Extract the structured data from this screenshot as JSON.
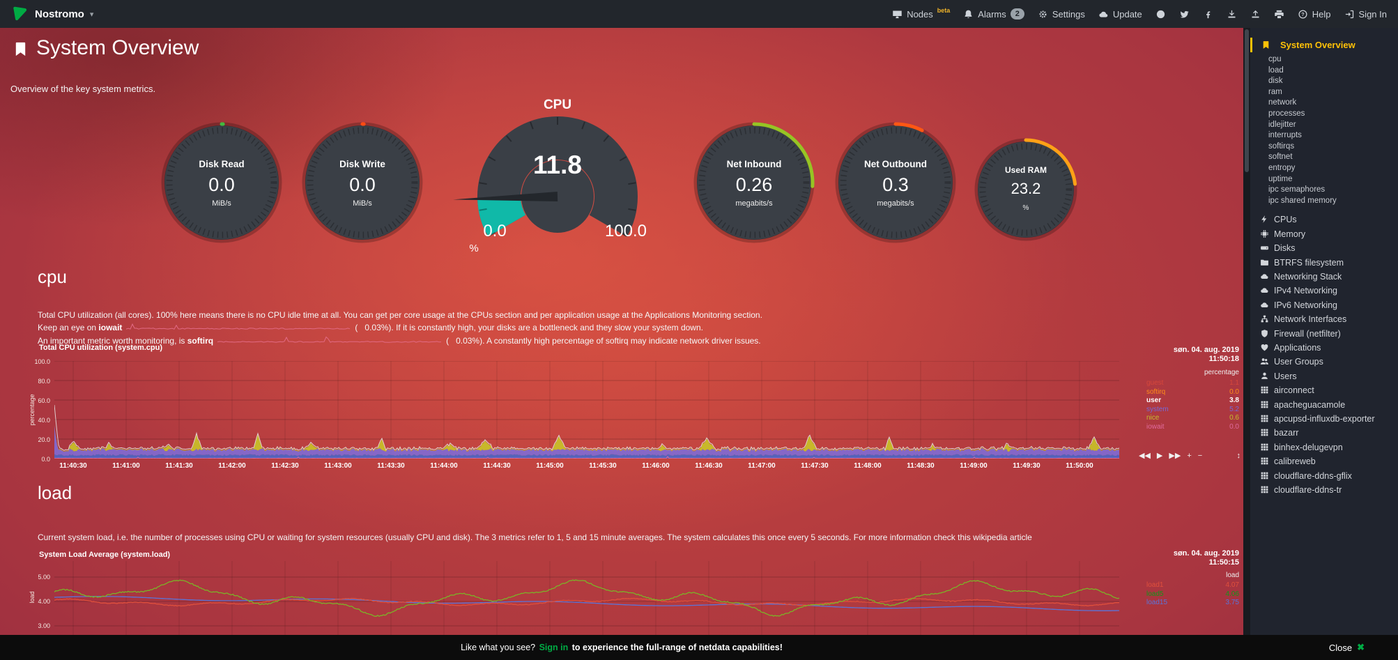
{
  "navbar": {
    "brand": "Nostromo",
    "nodes": {
      "label": "Nodes",
      "badge": "beta"
    },
    "alarms": {
      "label": "Alarms",
      "badge": "2"
    },
    "settings_label": "Settings",
    "update_label": "Update",
    "help_label": "Help",
    "signin_label": "Sign In"
  },
  "header": {
    "title": "System Overview",
    "subtitle": "Overview of the key system metrics."
  },
  "gauges": {
    "cpu": {
      "title": "CPU",
      "value": "11.8",
      "min": "0.0",
      "max": "100.0",
      "unit": "%",
      "color": "#10b9a8",
      "fraction": 0.118
    },
    "pies": [
      {
        "title": "Disk Read",
        "value": "0.0",
        "unit": "MiB/s",
        "color": "#43b93f",
        "fraction": 0.004
      },
      {
        "title": "Disk Write",
        "value": "0.0",
        "unit": "MiB/s",
        "color": "#ff4b12",
        "fraction": 0.004
      },
      {
        "title": "Net Inbound",
        "value": "0.26",
        "unit": "megabits/s",
        "color": "#97c424",
        "fraction": 0.26
      },
      {
        "title": "Net Outbound",
        "value": "0.3",
        "unit": "megabits/s",
        "color": "#ff5714",
        "fraction": 0.075
      },
      {
        "title": "Used RAM",
        "value": "23.2",
        "unit": "%",
        "color": "#ffa117",
        "fraction": 0.232,
        "small": true
      }
    ]
  },
  "cpu_section": {
    "heading": "cpu",
    "description": "Total CPU utilization (all cores). 100% here means there is no CPU idle time at all. You can get per core usage at the CPUs section and per application usage at the Applications Monitoring section.",
    "iowait_line": {
      "prefix": "Keep an eye on ",
      "metric": "iowait",
      "open": "(",
      "value": "0.03%",
      "suffix": "). If it is constantly high, your disks are a bottleneck and they slow your system down."
    },
    "softirq_line": {
      "prefix": "An important metric worth monitoring, is ",
      "metric": "softirq",
      "open": "(",
      "value": "0.03%",
      "suffix": "). A constantly high percentage of softirq may indicate network driver issues."
    },
    "spark_color": "#e26a84"
  },
  "cpu_chart": {
    "title": "Total CPU utilization (system.cpu)",
    "date": "søn. 04. aug. 2019",
    "time": "11:50:18",
    "unit": "percentage",
    "y_label": "percentage",
    "y_ticks": [
      "100.0",
      "80.0",
      "60.0",
      "40.0",
      "20.0",
      "0.0"
    ],
    "x_ticks": [
      "11:40:30",
      "11:41:00",
      "11:41:30",
      "11:42:00",
      "11:42:30",
      "11:43:00",
      "11:43:30",
      "11:44:00",
      "11:44:30",
      "11:45:00",
      "11:45:30",
      "11:46:00",
      "11:46:30",
      "11:47:00",
      "11:47:30",
      "11:48:00",
      "11:48:30",
      "11:49:00",
      "11:49:30",
      "11:50:00"
    ],
    "legend": [
      {
        "name": "guest",
        "value": "1.1",
        "color": "#d6473b"
      },
      {
        "name": "softirq",
        "value": "0.0",
        "color": "#ff8c1a"
      },
      {
        "name": "user",
        "value": "3.8",
        "color": "#ffffff",
        "bold": true
      },
      {
        "name": "system",
        "value": "5.2",
        "color": "#7668d8"
      },
      {
        "name": "nice",
        "value": "0.6",
        "color": "#c3bb2e"
      },
      {
        "name": "iowait",
        "value": "0.0",
        "color": "#e06a9d"
      }
    ],
    "series_colors": {
      "user": "#4a67c9",
      "system": "#7f6bd6",
      "nice": "#c9c428",
      "iowait": "#e06a9d",
      "total": "#e9e9e9"
    },
    "toolbar": [
      "◀◀",
      "▶",
      "▶▶",
      "+",
      "−",
      "↕"
    ]
  },
  "load_section": {
    "heading": "load",
    "description": "Current system load, i.e. the number of processes using CPU or waiting for system resources (usually CPU and disk). The 3 metrics refer to 1, 5 and 15 minute averages. The system calculates this once every 5 seconds. For more information check this wikipedia article"
  },
  "load_chart": {
    "title": "System Load Average (system.load)",
    "date": "søn. 04. aug. 2019",
    "time": "11:50:15",
    "unit": "load",
    "y_label": "load",
    "y_ticks": [
      "5.00",
      "4.00",
      "3.00"
    ],
    "legend": [
      {
        "name": "load1",
        "value": "4.07",
        "color": "#e0503c"
      },
      {
        "name": "load5",
        "value": "4.06",
        "color": "#109618"
      },
      {
        "name": "load15",
        "value": "3.75",
        "color": "#5b74d9"
      }
    ],
    "series_colors": {
      "load1": "#e0503c",
      "load5": "#7cb228",
      "load15": "#5b74d9"
    }
  },
  "sidebar": {
    "items": [
      {
        "label": "System Overview",
        "icon": "bookmark",
        "kind": "active"
      },
      {
        "label": "cpu",
        "kind": "sub"
      },
      {
        "label": "load",
        "kind": "sub"
      },
      {
        "label": "disk",
        "kind": "sub"
      },
      {
        "label": "ram",
        "kind": "sub"
      },
      {
        "label": "network",
        "kind": "sub"
      },
      {
        "label": "processes",
        "kind": "sub"
      },
      {
        "label": "idlejitter",
        "kind": "sub"
      },
      {
        "label": "interrupts",
        "kind": "sub"
      },
      {
        "label": "softirqs",
        "kind": "sub"
      },
      {
        "label": "softnet",
        "kind": "sub"
      },
      {
        "label": "entropy",
        "kind": "sub"
      },
      {
        "label": "uptime",
        "kind": "sub"
      },
      {
        "label": "ipc semaphores",
        "kind": "sub"
      },
      {
        "label": "ipc shared memory",
        "kind": "sub"
      },
      {
        "label": "CPUs",
        "icon": "bolt",
        "kind": "item",
        "gap": true
      },
      {
        "label": "Memory",
        "icon": "chip",
        "kind": "item"
      },
      {
        "label": "Disks",
        "icon": "hdd",
        "kind": "item"
      },
      {
        "label": "BTRFS filesystem",
        "icon": "folder",
        "kind": "item"
      },
      {
        "label": "Networking Stack",
        "icon": "cloud",
        "kind": "item"
      },
      {
        "label": "IPv4 Networking",
        "icon": "cloud",
        "kind": "item"
      },
      {
        "label": "IPv6 Networking",
        "icon": "cloud",
        "kind": "item"
      },
      {
        "label": "Network Interfaces",
        "icon": "sitemap",
        "kind": "item"
      },
      {
        "label": "Firewall (netfilter)",
        "icon": "shield",
        "kind": "item"
      },
      {
        "label": "Applications",
        "icon": "heart",
        "kind": "item"
      },
      {
        "label": "User Groups",
        "icon": "users",
        "kind": "item"
      },
      {
        "label": "Users",
        "icon": "user",
        "kind": "item"
      },
      {
        "label": "airconnect",
        "icon": "cubes",
        "kind": "item"
      },
      {
        "label": "apacheguacamole",
        "icon": "cubes",
        "kind": "item"
      },
      {
        "label": "apcupsd-influxdb-exporter",
        "icon": "cubes",
        "kind": "item"
      },
      {
        "label": "bazarr",
        "icon": "cubes",
        "kind": "item"
      },
      {
        "label": "binhex-delugevpn",
        "icon": "cubes",
        "kind": "item"
      },
      {
        "label": "calibreweb",
        "icon": "cubes",
        "kind": "item"
      },
      {
        "label": "cloudflare-ddns-gflix",
        "icon": "cubes",
        "kind": "item"
      },
      {
        "label": "cloudflare-ddns-tr",
        "icon": "cubes",
        "kind": "item"
      }
    ]
  },
  "footer": {
    "prefix": "Like what you see? ",
    "signin": "Sign in",
    "suffix": " to experience the full-range of netdata capabilities!",
    "close": "Close",
    "close_icon": "✖"
  }
}
